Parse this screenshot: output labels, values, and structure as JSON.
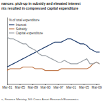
{
  "chart_data": {
    "type": "line",
    "title": [
      "nances: pick-up in subsidy and elevated interest",
      "nts resulted in compressed capital expenditure"
    ],
    "y_label": "% of total expenditure",
    "source": "s, Finance Ministry, SG Cross Asset Research/Economics",
    "categories": [
      "Mar-81",
      null,
      null,
      null,
      "Mar-85",
      null,
      null,
      null,
      "Mar-89",
      null,
      null,
      null,
      "Mar-93",
      null,
      null,
      null,
      "Mar-97",
      null,
      null,
      null,
      "Mar-01",
      null,
      null,
      null,
      "Mar-05",
      null,
      null,
      null,
      "Mar-09",
      null
    ],
    "series": [
      {
        "name": "Interest",
        "color": "#1f3d6e",
        "values": [
          10,
          11,
          12,
          13,
          14,
          15,
          16,
          17,
          18,
          19,
          20,
          21,
          22,
          23,
          24,
          25,
          25,
          25,
          26,
          27,
          27,
          26,
          25,
          24,
          24,
          23,
          21,
          20,
          19,
          19
        ]
      },
      {
        "name": "Subsidy",
        "color": "#c0784a",
        "values": [
          8,
          9,
          9,
          9,
          9,
          10,
          10,
          10,
          10,
          9,
          9,
          9,
          8,
          8,
          8,
          8,
          8,
          9,
          9,
          9,
          9,
          9,
          9,
          9,
          9,
          9,
          10,
          12,
          13,
          12
        ]
      },
      {
        "name": "Capital expenditure",
        "color": "#9aa0a6",
        "values": [
          28,
          27,
          27,
          26,
          25,
          24,
          24,
          22,
          21,
          20,
          18,
          17,
          17,
          16,
          15,
          14,
          13,
          13,
          14,
          13,
          12,
          12,
          12,
          13,
          14,
          15,
          12,
          12,
          13,
          12
        ]
      }
    ],
    "ylim": [
      0,
      40
    ],
    "tick_labels": "x",
    "legend": "upper left"
  }
}
